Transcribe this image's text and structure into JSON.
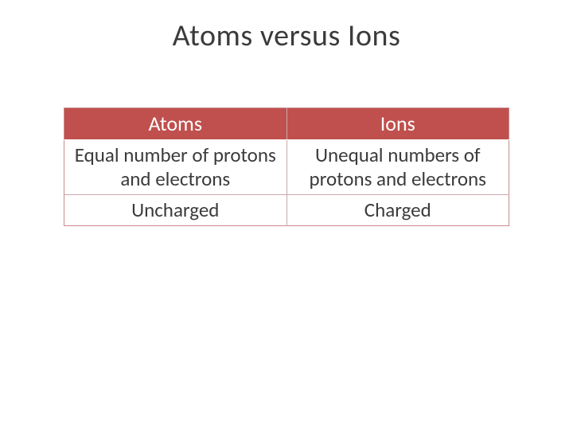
{
  "slide": {
    "title": "Atoms versus Ions",
    "table": {
      "type": "table",
      "columns": [
        "Atoms",
        "Ions"
      ],
      "rows": [
        [
          "Equal number of protons and electrons",
          "Unequal numbers of protons and electrons"
        ],
        [
          "Uncharged",
          "Charged"
        ]
      ],
      "header_bg": "#c0504d",
      "header_text_color": "#ffffff",
      "cell_bg": "#ffffff",
      "cell_text_color": "#3b3b3b",
      "border_color": "#c98b8b",
      "inner_border_color": "#c9a9a9",
      "title_fontsize": 38,
      "header_fontsize": 26,
      "cell_fontsize": 25,
      "col_widths_pct": [
        50,
        50
      ]
    },
    "background_color": "#ffffff"
  }
}
